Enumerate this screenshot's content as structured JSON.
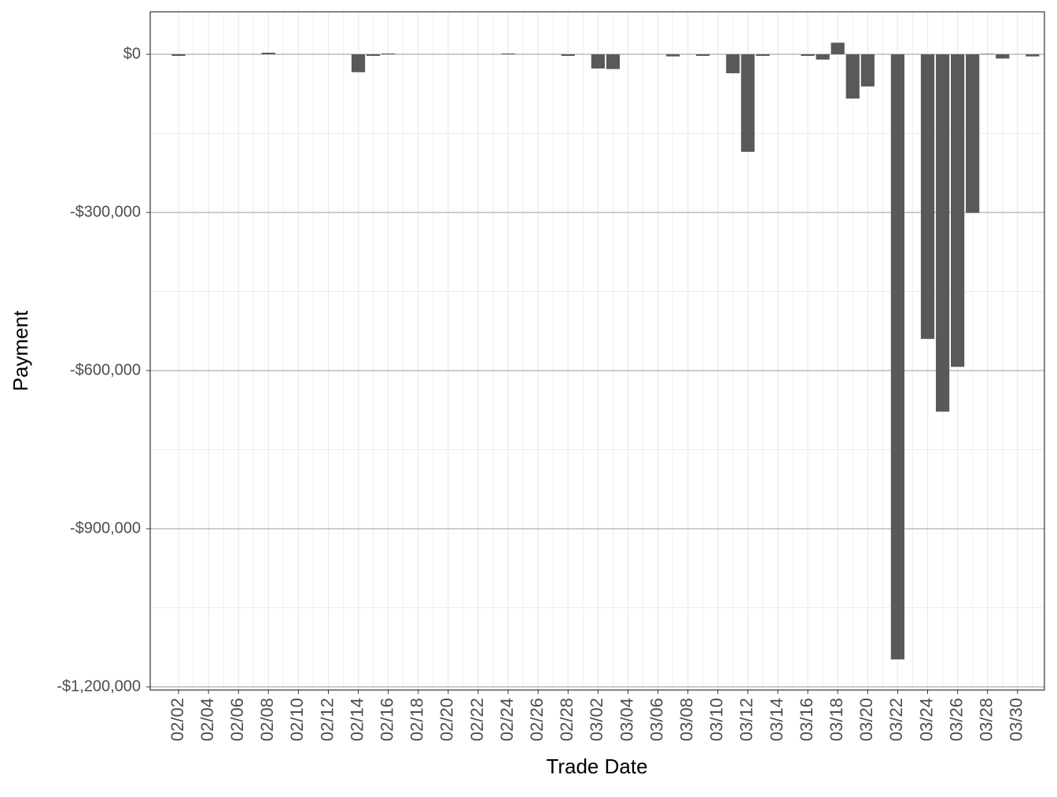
{
  "chart_data": {
    "type": "bar",
    "x_label": "Trade Date",
    "y_label": "Payment",
    "categories": [
      "02/02",
      null,
      "02/04",
      null,
      "02/06",
      null,
      "02/08",
      null,
      "02/10",
      null,
      "02/12",
      null,
      "02/14",
      null,
      "02/16",
      null,
      "02/18",
      null,
      "02/20",
      null,
      "02/22",
      null,
      "02/24",
      null,
      "02/26",
      null,
      "02/28",
      null,
      "03/02",
      null,
      "03/04",
      null,
      "03/06",
      null,
      "03/08",
      null,
      "03/10",
      null,
      "03/12",
      null,
      "03/14",
      null,
      "03/16",
      null,
      "03/18",
      null,
      "03/20",
      null,
      "03/22",
      null,
      "03/24",
      null,
      "03/26",
      null,
      "03/28",
      null,
      "03/30",
      null
    ],
    "values": [
      -3000,
      null,
      null,
      null,
      null,
      null,
      3000,
      null,
      null,
      null,
      null,
      null,
      -34000,
      -3000,
      1500,
      null,
      null,
      null,
      null,
      null,
      null,
      null,
      1500,
      null,
      null,
      null,
      -3000,
      null,
      -27000,
      -28000,
      null,
      null,
      null,
      -4000,
      null,
      -3000,
      null,
      -36000,
      -185000,
      -3000,
      null,
      null,
      -3000,
      -10000,
      22000,
      -84000,
      -61000,
      null,
      -1148000,
      null,
      -540000,
      -678000,
      -593000,
      -301000,
      1000,
      -8000,
      null,
      -4000
    ],
    "color": "#595959",
    "ylim": [
      -1206000,
      80600
    ],
    "yticks": [
      {
        "value": 0,
        "label": "$0"
      },
      {
        "value": -300000,
        "label": "-$300,000"
      },
      {
        "value": -600000,
        "label": "-$600,000"
      },
      {
        "value": -900000,
        "label": "-$900,000"
      },
      {
        "value": -1200000,
        "label": "-$1,200,000"
      }
    ],
    "yminor": [
      -150000,
      -450000,
      -750000,
      -1050000
    ],
    "grid": true
  }
}
